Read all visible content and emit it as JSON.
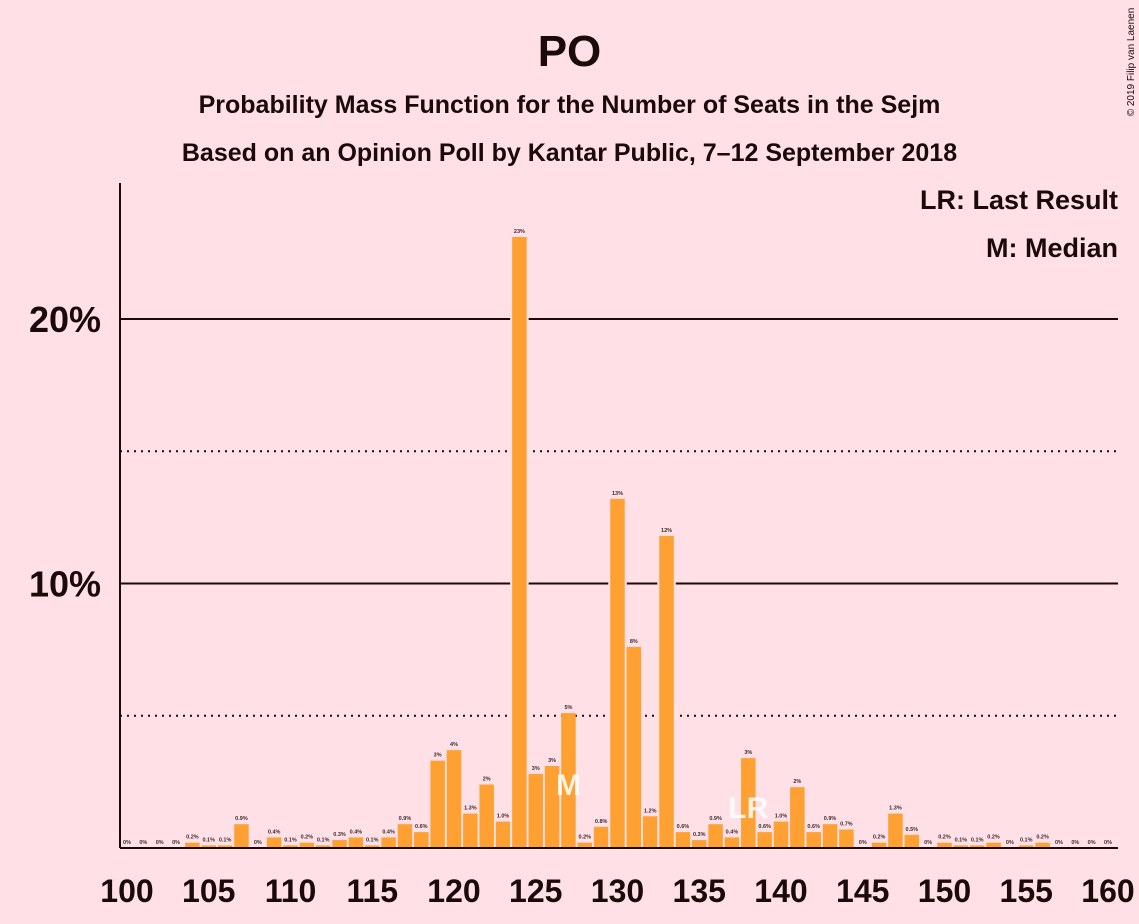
{
  "title": "PO",
  "subtitle1": "Probability Mass Function for the Number of Seats in the Sejm",
  "subtitle2": "Based on an Opinion Poll by Kantar Public, 7–12 September 2018",
  "copyright": "© 2019 Filip van Laenen",
  "legend": {
    "last_result": "LR: Last Result",
    "median": "M: Median"
  },
  "colors": {
    "bar": "#ffa033",
    "background": "#ffe0e6",
    "text": "#1a0a0a",
    "marker": "#ffffff"
  },
  "chart_data": {
    "type": "bar",
    "title": "PO",
    "x": [
      100,
      101,
      102,
      103,
      104,
      105,
      106,
      107,
      108,
      109,
      110,
      111,
      112,
      113,
      114,
      115,
      116,
      117,
      118,
      119,
      120,
      121,
      122,
      123,
      124,
      125,
      126,
      127,
      128,
      129,
      130,
      131,
      132,
      133,
      134,
      135,
      136,
      137,
      138,
      139,
      140,
      141,
      142,
      143,
      144,
      145,
      146,
      147,
      148,
      149,
      150,
      151,
      152,
      153,
      154,
      155,
      156,
      157,
      158,
      159,
      160
    ],
    "values": [
      0,
      0,
      0,
      0,
      0.2,
      0.1,
      0.1,
      0.9,
      0,
      0.4,
      0.1,
      0.2,
      0.1,
      0.3,
      0.4,
      0.1,
      0.4,
      0.9,
      0.6,
      3.3,
      3.7,
      1.3,
      2.4,
      1.0,
      23.1,
      2.8,
      3.1,
      5.1,
      0.2,
      0.8,
      13.2,
      7.6,
      1.2,
      11.8,
      0.6,
      0.3,
      0.9,
      0.4,
      3.4,
      0.6,
      1.0,
      2.3,
      0.6,
      0.9,
      0.7,
      0,
      0.2,
      1.3,
      0.5,
      0,
      0.2,
      0.1,
      0.1,
      0.2,
      0,
      0.1,
      0.2,
      0,
      0,
      0,
      0
    ],
    "labels": [
      "0%",
      "0%",
      "0%",
      "0%",
      "0.2%",
      "0.1%",
      "0.1%",
      "0.9%",
      "0%",
      "0.4%",
      "0.1%",
      "0.2%",
      "0.1%",
      "0.3%",
      "0.4%",
      "0.1%",
      "0.4%",
      "0.9%",
      "0.6%",
      "3%",
      "4%",
      "1.3%",
      "2%",
      "1.0%",
      "23%",
      "3%",
      "3%",
      "5%",
      "0.2%",
      "0.8%",
      "13%",
      "8%",
      "1.2%",
      "12%",
      "0.6%",
      "0.3%",
      "0.9%",
      "0.4%",
      "3%",
      "0.6%",
      "1.0%",
      "2%",
      "0.6%",
      "0.9%",
      "0.7%",
      "0%",
      "0.2%",
      "1.3%",
      "0.5%",
      "0%",
      "0.2%",
      "0.1%",
      "0.1%",
      "0.2%",
      "0%",
      "0.1%",
      "0.2%",
      "0%",
      "0%",
      "0%",
      "0%"
    ],
    "xlim": [
      100,
      160
    ],
    "ylim": [
      0,
      25
    ],
    "x_ticks": [
      "100",
      "105",
      "110",
      "115",
      "120",
      "125",
      "130",
      "135",
      "140",
      "145",
      "150",
      "155",
      "160"
    ],
    "y_ticks": [
      "10%",
      "20%"
    ],
    "solid_gridlines": [
      10,
      20
    ],
    "dotted_gridlines": [
      5,
      15
    ],
    "median": 127,
    "median_marker": "M",
    "last_result": 138,
    "last_result_marker": "LR"
  }
}
